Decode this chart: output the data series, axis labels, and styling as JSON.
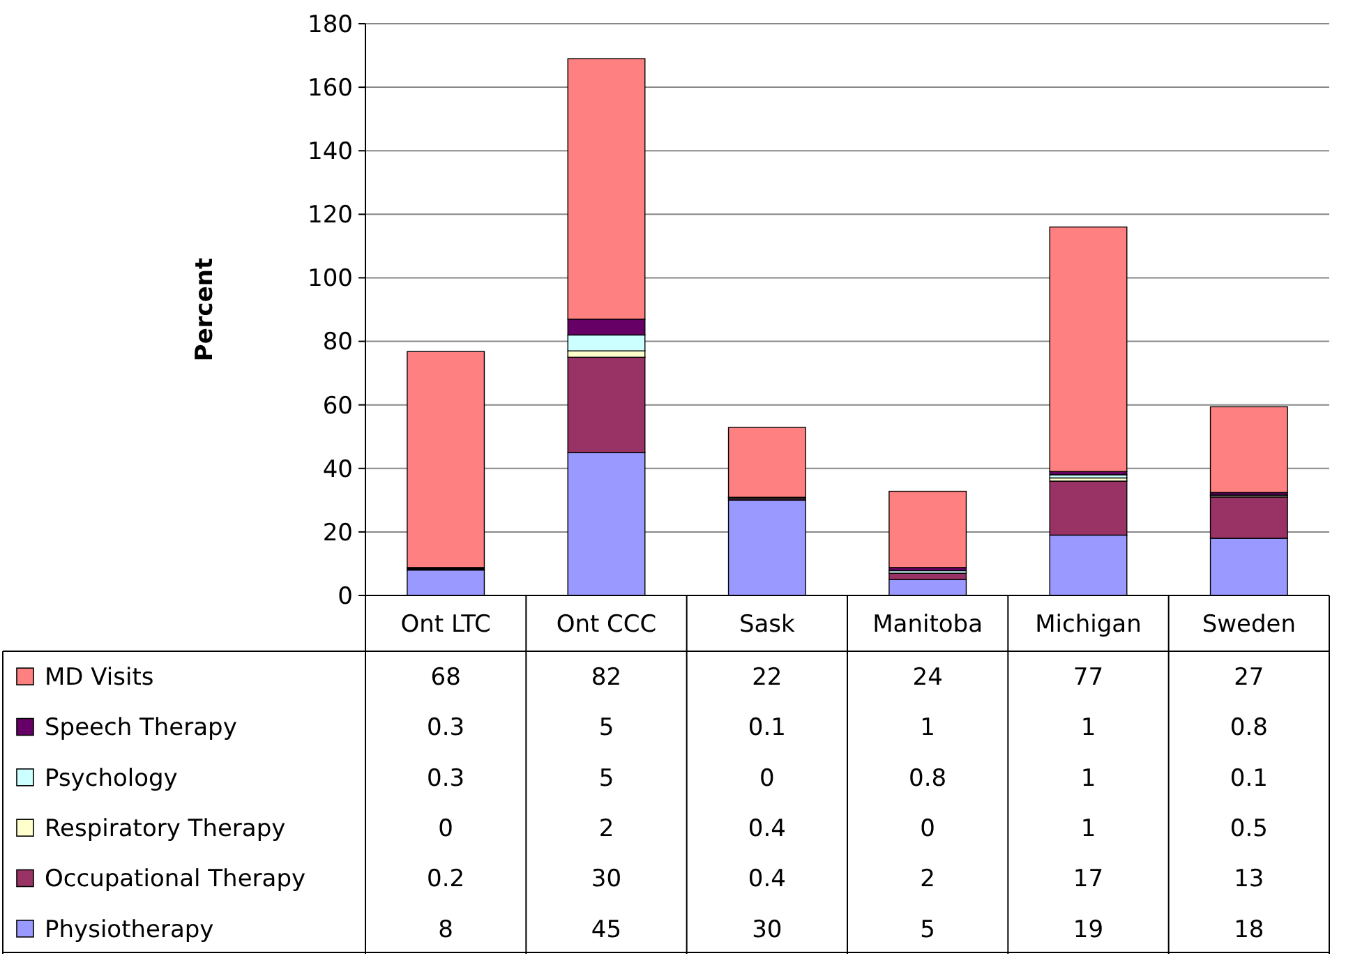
{
  "chart_data": {
    "type": "bar",
    "stacked": true,
    "ylabel": "Percent",
    "categories": [
      "Ont LTC",
      "Ont CCC",
      "Sask",
      "Manitoba",
      "Michigan",
      "Sweden"
    ],
    "series": [
      {
        "name": "Physiotherapy",
        "color": "#9999ff",
        "values": [
          8,
          45,
          30,
          5,
          19,
          18
        ]
      },
      {
        "name": "Occupational Therapy",
        "color": "#993366",
        "values": [
          0.2,
          30,
          0.4,
          2,
          17,
          13
        ]
      },
      {
        "name": "Respiratory Therapy",
        "color": "#ffffcc",
        "values": [
          0,
          2,
          0.4,
          0,
          1,
          0.5
        ]
      },
      {
        "name": "Psychology",
        "color": "#ccffff",
        "values": [
          0.3,
          5,
          0,
          0.8,
          1,
          0.1
        ]
      },
      {
        "name": "Speech Therapy",
        "color": "#660066",
        "values": [
          0.3,
          5,
          0.1,
          1,
          1,
          0.8
        ]
      },
      {
        "name": "MD Visits",
        "color": "#ff8080",
        "values": [
          68,
          82,
          22,
          24,
          77,
          27
        ]
      }
    ],
    "ylim": [
      0,
      180
    ],
    "yticks": [
      0,
      20,
      40,
      60,
      80,
      100,
      120,
      140,
      160,
      180
    ],
    "grid": "y",
    "legend": "left",
    "data_labels": true
  }
}
